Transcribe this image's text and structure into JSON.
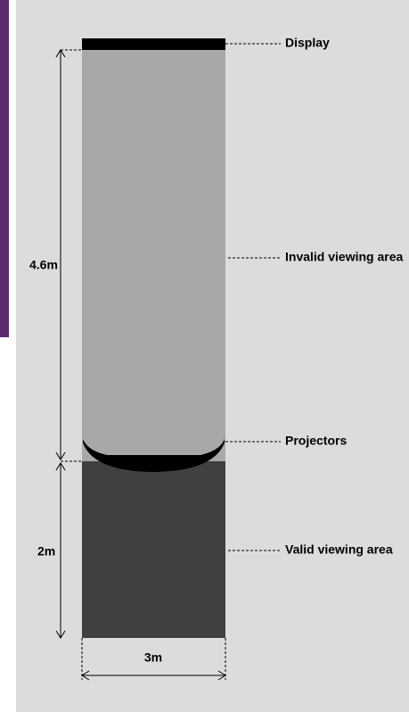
{
  "labels": {
    "display": "Display",
    "invalid_area": "Invalid viewing area",
    "projectors": "Projectors",
    "valid_area": "Valid viewing area"
  },
  "dimensions": {
    "invalid_depth": "4.6m",
    "valid_depth": "2m",
    "width": "3m"
  }
}
